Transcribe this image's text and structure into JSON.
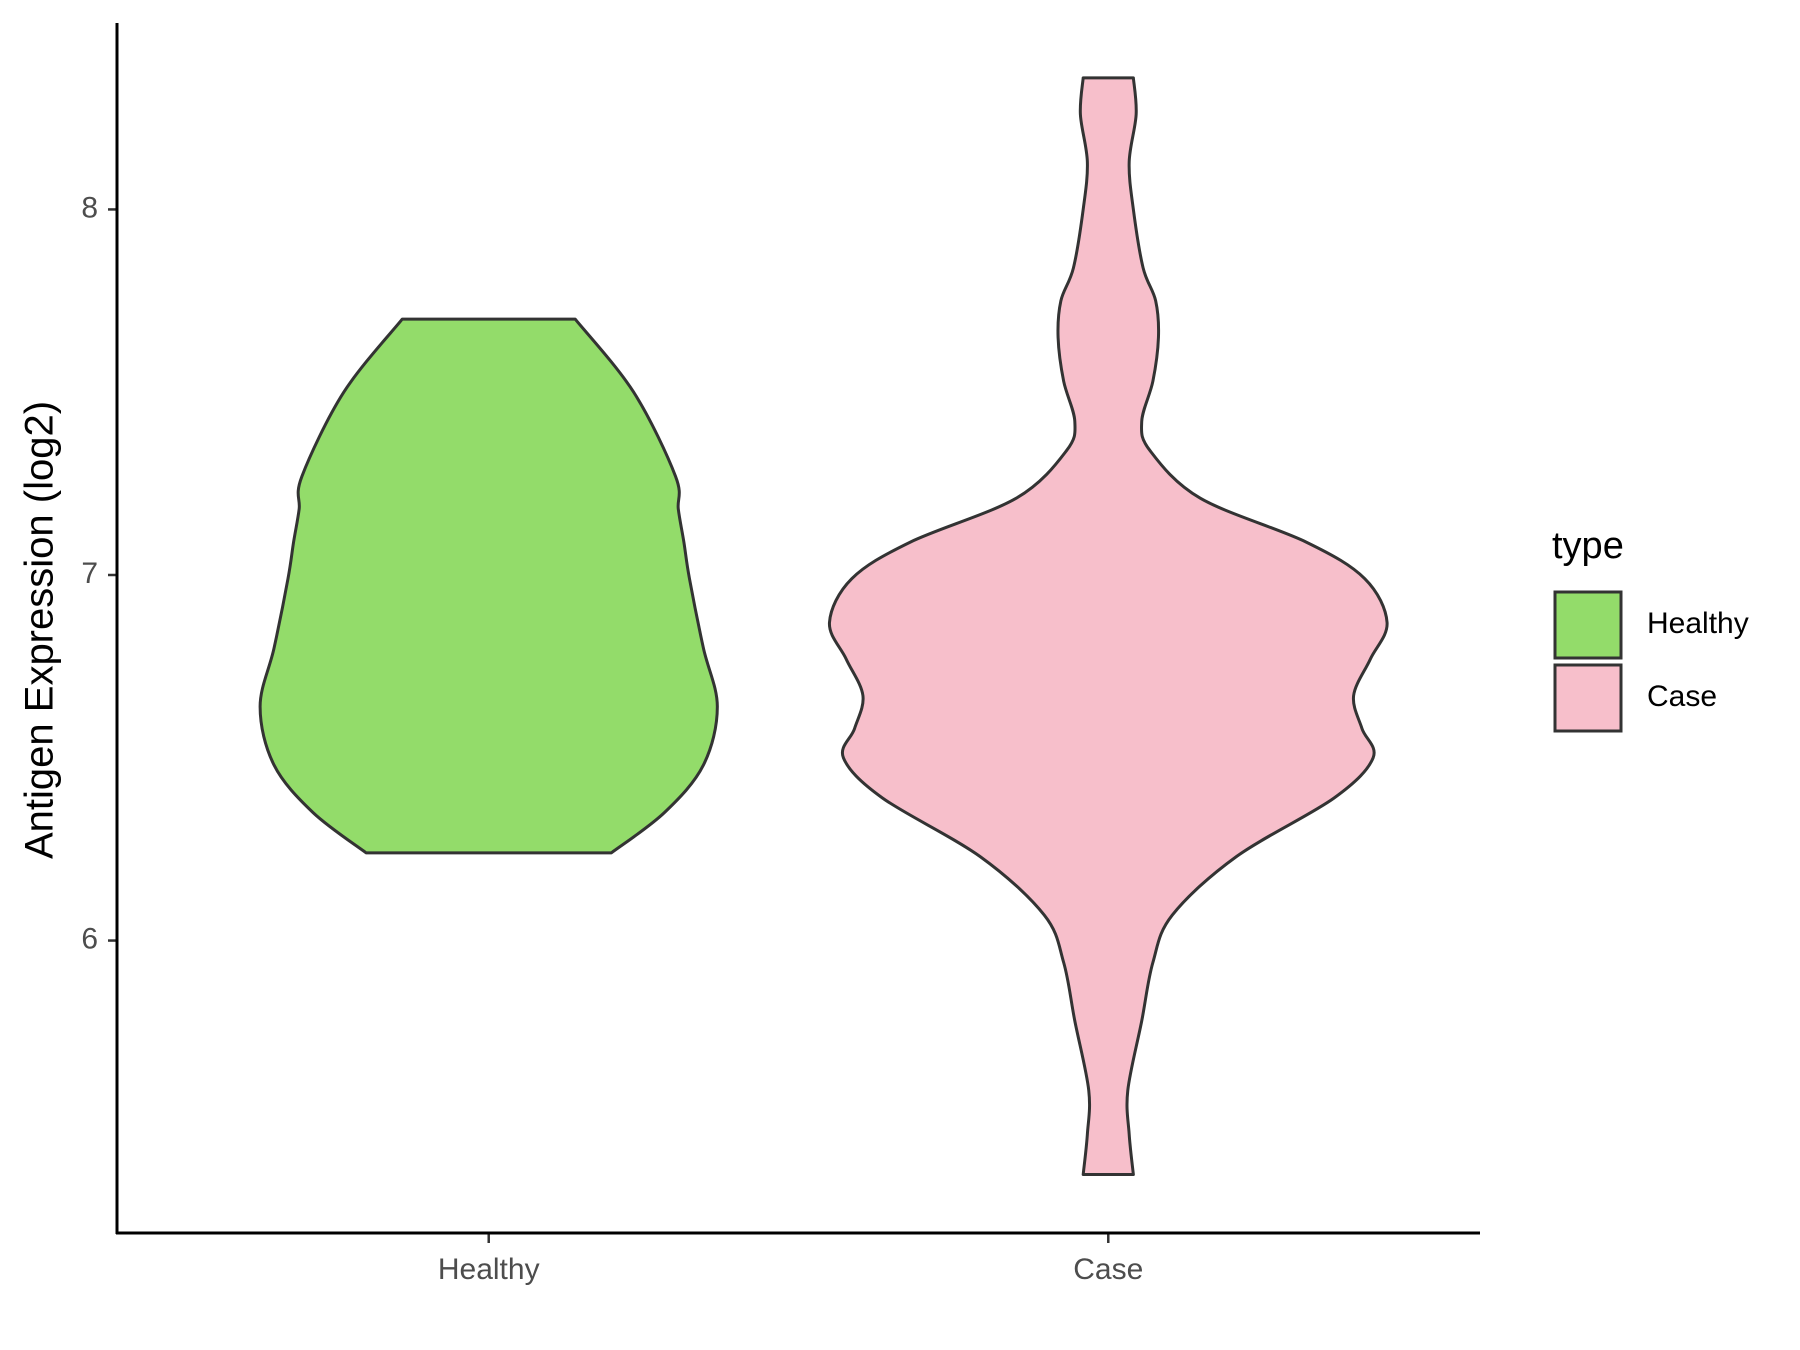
{
  "chart_data": {
    "type": "violin",
    "y_label": "Antigen Expression (log2)",
    "legend_title": "type",
    "categories": [
      "Healthy",
      "Case"
    ],
    "ylim": [
      5.2,
      8.51
    ],
    "yticks": [
      6,
      7,
      8
    ],
    "series": [
      {
        "name": "Healthy",
        "color": "#93dc6a",
        "y": [
          7.7,
          7.5,
          7.27,
          7.18,
          7.09,
          6.99,
          6.8,
          6.64,
          6.48,
          6.35,
          6.24
        ],
        "widths": [
          0.31,
          0.52,
          0.67,
          0.68,
          0.7,
          0.72,
          0.77,
          0.82,
          0.77,
          0.63,
          0.44
        ]
      },
      {
        "name": "Case",
        "color": "#f7bfcb",
        "y": [
          8.36,
          8.26,
          8.13,
          8.0,
          7.84,
          7.75,
          7.65,
          7.53,
          7.42,
          7.34,
          7.21,
          7.09,
          6.99,
          6.87,
          6.77,
          6.67,
          6.58,
          6.5,
          6.39,
          6.23,
          6.07,
          5.94,
          5.78,
          5.59,
          5.47,
          5.36
        ],
        "widths": [
          0.09,
          0.1,
          0.075,
          0.09,
          0.125,
          0.17,
          0.18,
          0.16,
          0.12,
          0.15,
          0.33,
          0.71,
          0.92,
          1.0,
          0.94,
          0.88,
          0.91,
          0.95,
          0.81,
          0.46,
          0.23,
          0.16,
          0.12,
          0.07,
          0.075,
          0.09
        ]
      }
    ]
  }
}
